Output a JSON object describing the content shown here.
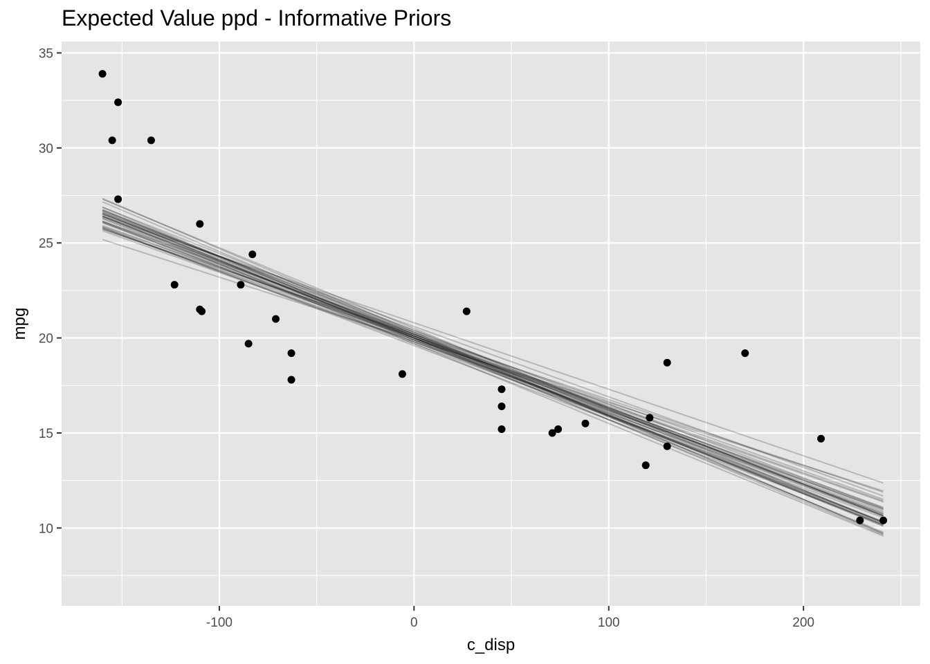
{
  "chart_data": {
    "type": "scatter",
    "title": "Expected Value ppd - Informative Priors",
    "xlabel": "c_disp",
    "ylabel": "mpg",
    "xlim": [
      -181,
      260
    ],
    "ylim": [
      5.9,
      35.6
    ],
    "xticks": [
      -100,
      0,
      100,
      200
    ],
    "xtick_labels": [
      "-100",
      "0",
      "100",
      "200"
    ],
    "yticks": [
      10,
      15,
      20,
      25,
      30,
      35
    ],
    "ytick_labels": [
      "10",
      "15",
      "20",
      "25",
      "30",
      "35"
    ],
    "grid": true,
    "colors": {
      "panel": "#e5e5e5",
      "grid": "#ffffff",
      "points": "#000000",
      "lines": "#000000"
    },
    "points": {
      "x": [
        -160,
        -152,
        -155,
        -135,
        -152,
        -110,
        -83,
        -123,
        -89,
        -110,
        -109,
        -71,
        -85,
        -63,
        -63,
        -6,
        27,
        45,
        45,
        45,
        71,
        74,
        88,
        121,
        130,
        119,
        130,
        170,
        209,
        229,
        241
      ],
      "y": [
        33.9,
        32.4,
        30.4,
        30.4,
        27.3,
        26.0,
        24.4,
        22.8,
        22.8,
        21.5,
        21.4,
        21.0,
        19.7,
        19.2,
        17.8,
        18.1,
        21.4,
        17.3,
        16.4,
        15.2,
        15.0,
        15.2,
        15.5,
        15.8,
        18.7,
        13.3,
        14.3,
        19.2,
        14.7,
        10.4,
        10.4
      ]
    },
    "lines": {
      "x_range": [
        -160,
        241
      ],
      "series": [
        {
          "intercept": 20.1,
          "slope": -0.0388
        },
        {
          "intercept": 20.3,
          "slope": -0.044
        },
        {
          "intercept": 19.9,
          "slope": -0.033
        },
        {
          "intercept": 20.0,
          "slope": -0.043
        },
        {
          "intercept": 20.2,
          "slope": -0.041
        },
        {
          "intercept": 20.6,
          "slope": -0.037
        },
        {
          "intercept": 19.7,
          "slope": -0.042
        },
        {
          "intercept": 19.8,
          "slope": -0.0395
        },
        {
          "intercept": 20.1,
          "slope": -0.036
        },
        {
          "intercept": 20.4,
          "slope": -0.0405
        },
        {
          "intercept": 20.0,
          "slope": -0.038
        },
        {
          "intercept": 19.6,
          "slope": -0.039
        },
        {
          "intercept": 20.2,
          "slope": -0.0345
        },
        {
          "intercept": 20.1,
          "slope": -0.0415
        },
        {
          "intercept": 19.9,
          "slope": -0.0398
        },
        {
          "intercept": 20.5,
          "slope": -0.0425
        },
        {
          "intercept": 19.8,
          "slope": -0.0365
        },
        {
          "intercept": 20.0,
          "slope": -0.041
        },
        {
          "intercept": 20.2,
          "slope": -0.0385
        },
        {
          "intercept": 20.3,
          "slope": -0.04
        },
        {
          "intercept": 20.0,
          "slope": -0.037
        },
        {
          "intercept": 19.9,
          "slope": -0.042
        },
        {
          "intercept": 20.1,
          "slope": -0.0378
        },
        {
          "intercept": 20.4,
          "slope": -0.0388
        },
        {
          "intercept": 20.8,
          "slope": -0.035
        },
        {
          "intercept": 20.0,
          "slope": -0.0402
        },
        {
          "intercept": 19.8,
          "slope": -0.0375
        },
        {
          "intercept": 20.2,
          "slope": -0.0435
        },
        {
          "intercept": 20.1,
          "slope": -0.0393
        },
        {
          "intercept": 20.3,
          "slope": -0.0365
        },
        {
          "intercept": 19.9,
          "slope": -0.0385
        },
        {
          "intercept": 20.0,
          "slope": -0.0408
        },
        {
          "intercept": 19.7,
          "slope": -0.038
        },
        {
          "intercept": 20.2,
          "slope": -0.0395
        },
        {
          "intercept": 20.0,
          "slope": -0.0358
        },
        {
          "intercept": 20.1,
          "slope": -0.0412
        }
      ]
    }
  }
}
